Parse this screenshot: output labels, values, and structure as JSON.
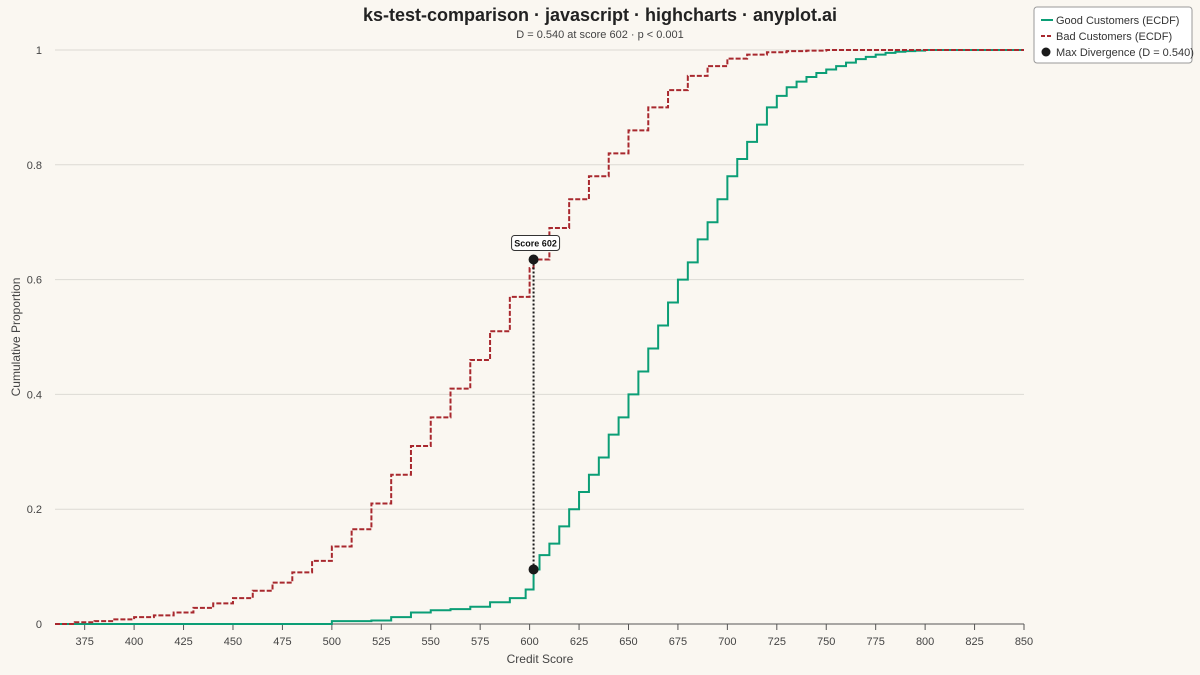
{
  "chart_data": {
    "type": "line",
    "title": "ks-test-comparison · javascript · highcharts · anyplot.ai",
    "subtitle": "D = 0.540 at score 602 · p < 0.001",
    "xlabel": "Credit Score",
    "ylabel": "Cumulative Proportion",
    "xlim": [
      360,
      850
    ],
    "ylim": [
      0,
      1
    ],
    "x_ticks": [
      375,
      400,
      425,
      450,
      475,
      500,
      525,
      550,
      575,
      600,
      625,
      650,
      675,
      700,
      725,
      750,
      775,
      800,
      825,
      850
    ],
    "y_ticks": [
      0,
      0.2,
      0.4,
      0.6,
      0.8,
      1
    ],
    "y_tick_labels": [
      "0",
      "0.2",
      "0.4",
      "0.6",
      "0.8",
      "1"
    ],
    "grid": "horizontal",
    "legend_position": "top-right",
    "series": [
      {
        "name": "Good Customers (ECDF)",
        "color": "#0b9e76",
        "dash": "solid",
        "x": [
          360,
          495,
          500,
          520,
          530,
          540,
          550,
          560,
          570,
          580,
          590,
          598,
          602,
          605,
          610,
          615,
          620,
          625,
          630,
          635,
          640,
          645,
          650,
          655,
          660,
          665,
          670,
          675,
          680,
          685,
          690,
          695,
          700,
          705,
          710,
          715,
          720,
          725,
          730,
          735,
          740,
          745,
          750,
          755,
          760,
          765,
          770,
          775,
          780,
          785,
          790,
          795,
          800,
          805,
          810,
          815,
          820,
          825,
          830,
          835,
          840,
          845,
          850
        ],
        "y": [
          0,
          0,
          0.005,
          0.006,
          0.012,
          0.02,
          0.024,
          0.026,
          0.03,
          0.038,
          0.045,
          0.06,
          0.095,
          0.12,
          0.14,
          0.17,
          0.2,
          0.23,
          0.26,
          0.29,
          0.33,
          0.36,
          0.4,
          0.44,
          0.48,
          0.52,
          0.56,
          0.6,
          0.63,
          0.67,
          0.7,
          0.74,
          0.78,
          0.81,
          0.84,
          0.87,
          0.9,
          0.92,
          0.935,
          0.945,
          0.953,
          0.96,
          0.966,
          0.972,
          0.978,
          0.984,
          0.988,
          0.992,
          0.995,
          0.997,
          0.998,
          0.999,
          1,
          1,
          1,
          1,
          1,
          1,
          1,
          1,
          1,
          1,
          1
        ]
      },
      {
        "name": "Bad Customers (ECDF)",
        "color": "#a8282e",
        "dash": "dashed",
        "x": [
          360,
          370,
          380,
          390,
          400,
          410,
          420,
          430,
          440,
          450,
          460,
          470,
          480,
          490,
          500,
          510,
          520,
          530,
          540,
          550,
          560,
          570,
          580,
          590,
          600,
          602,
          610,
          620,
          630,
          640,
          650,
          660,
          670,
          680,
          690,
          700,
          710,
          720,
          730,
          740,
          750,
          760,
          770,
          780,
          790,
          800,
          810,
          820,
          830,
          840,
          850
        ],
        "y": [
          0,
          0.003,
          0.005,
          0.008,
          0.012,
          0.015,
          0.02,
          0.028,
          0.036,
          0.045,
          0.058,
          0.072,
          0.09,
          0.11,
          0.135,
          0.165,
          0.21,
          0.26,
          0.31,
          0.36,
          0.41,
          0.46,
          0.51,
          0.57,
          0.62,
          0.635,
          0.69,
          0.74,
          0.78,
          0.82,
          0.86,
          0.9,
          0.93,
          0.955,
          0.972,
          0.985,
          0.992,
          0.996,
          0.998,
          0.999,
          1,
          1,
          1,
          1,
          1,
          1,
          1,
          1,
          1,
          1,
          1
        ]
      }
    ],
    "max_divergence": {
      "name": "Max Divergence (D = 0.540)",
      "color": "#1a1a1a",
      "x": 602,
      "y_good": 0.095,
      "y_bad": 0.635,
      "label": "Score 602"
    }
  }
}
